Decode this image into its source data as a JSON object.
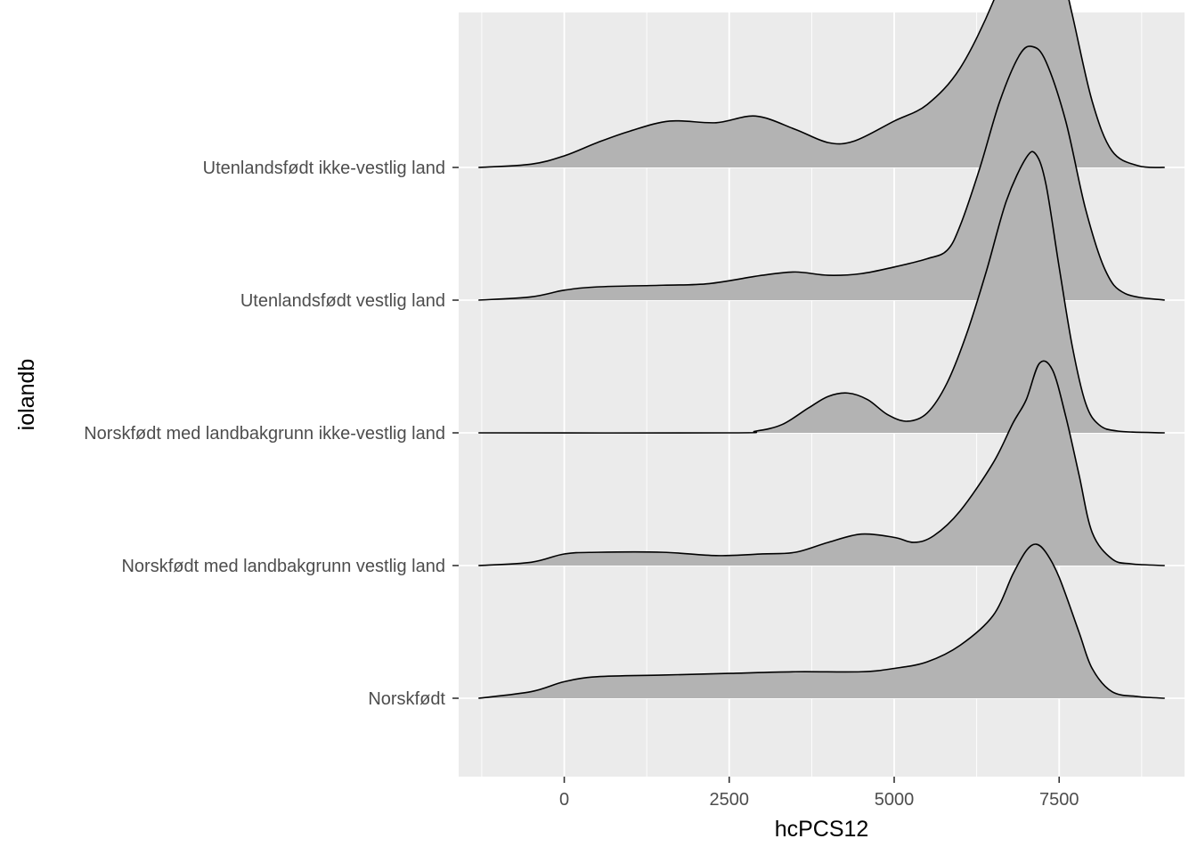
{
  "chart_data": {
    "type": "ridgeline",
    "title": "",
    "xlabel": "hcPCS12",
    "ylabel": "iolandb",
    "xlim": [
      -1600,
      9400
    ],
    "x_ticks": [
      0,
      2500,
      5000,
      7500
    ],
    "x_tick_labels": [
      "0",
      "2500",
      "5000",
      "7500"
    ],
    "grid": true,
    "fill_color": "#b3b3b3",
    "line_color": "#000000",
    "panel_color": "#ebebeb",
    "grid_color": "#ffffff",
    "categories": [
      "Norskfødt",
      "Norskfødt med landbakgrunn vestlig land",
      "Norskfødt med landbakgrunn ikke-vestlig land",
      "Utenlandsfødt vestlig land",
      "Utenlandsfødt ikke-vestlig land"
    ],
    "series": [
      {
        "category": "Norskfødt",
        "x": [
          -1300,
          -500,
          0,
          500,
          1500,
          2500,
          3500,
          4500,
          5000,
          5500,
          6000,
          6500,
          6800,
          7000,
          7150,
          7300,
          7500,
          7800,
          8000,
          8300,
          8700,
          9100
        ],
        "density": [
          0,
          0.04,
          0.1,
          0.13,
          0.14,
          0.15,
          0.16,
          0.16,
          0.18,
          0.22,
          0.32,
          0.5,
          0.75,
          0.89,
          0.93,
          0.88,
          0.73,
          0.4,
          0.18,
          0.04,
          0.01,
          0
        ]
      },
      {
        "category": "Norskfødt med landbakgrunn vestlig land",
        "x": [
          -1300,
          -500,
          0,
          500,
          1500,
          2300,
          3000,
          3500,
          4000,
          4500,
          5000,
          5300,
          5600,
          6000,
          6500,
          6800,
          7000,
          7200,
          7400,
          7600,
          7800,
          8000,
          8300,
          8600,
          9100
        ],
        "density": [
          0,
          0.02,
          0.07,
          0.08,
          0.08,
          0.06,
          0.07,
          0.08,
          0.14,
          0.19,
          0.17,
          0.14,
          0.18,
          0.33,
          0.62,
          0.86,
          1.0,
          1.22,
          1.18,
          0.9,
          0.55,
          0.2,
          0.04,
          0.01,
          0
        ]
      },
      {
        "category": "Norskfødt med landbakgrunn ikke-vestlig land",
        "x": [
          -1300,
          2500,
          2900,
          3300,
          3700,
          4000,
          4300,
          4600,
          4900,
          5200,
          5500,
          5800,
          6100,
          6400,
          6700,
          7000,
          7150,
          7300,
          7500,
          7700,
          7900,
          8100,
          8400,
          9100
        ],
        "density": [
          0,
          0,
          0.01,
          0.05,
          0.15,
          0.22,
          0.24,
          0.2,
          0.11,
          0.07,
          0.12,
          0.3,
          0.6,
          0.98,
          1.4,
          1.66,
          1.68,
          1.5,
          1.0,
          0.52,
          0.18,
          0.05,
          0.01,
          0
        ]
      },
      {
        "category": "Utenlandsfødt vestlig land",
        "x": [
          -1300,
          -500,
          0,
          500,
          1500,
          2200,
          3000,
          3500,
          4000,
          4500,
          5000,
          5500,
          5800,
          6000,
          6300,
          6600,
          6900,
          7100,
          7300,
          7600,
          7900,
          8200,
          8500,
          9100
        ],
        "density": [
          0,
          0.02,
          0.06,
          0.08,
          0.09,
          0.1,
          0.15,
          0.17,
          0.15,
          0.16,
          0.2,
          0.25,
          0.3,
          0.45,
          0.8,
          1.2,
          1.48,
          1.53,
          1.44,
          1.08,
          0.55,
          0.18,
          0.04,
          0
        ]
      },
      {
        "category": "Utenlandsfødt ikke-vestlig land",
        "x": [
          -1300,
          -500,
          0,
          500,
          1000,
          1600,
          2300,
          2900,
          3500,
          4000,
          4400,
          5000,
          5500,
          6000,
          6500,
          6800,
          7000,
          7200,
          7400,
          7700,
          8000,
          8300,
          8700,
          9100
        ],
        "density": [
          0,
          0.02,
          0.07,
          0.15,
          0.22,
          0.28,
          0.27,
          0.31,
          0.23,
          0.15,
          0.16,
          0.28,
          0.38,
          0.6,
          1.0,
          1.36,
          1.57,
          1.58,
          1.43,
          0.92,
          0.4,
          0.1,
          0.01,
          0
        ]
      }
    ]
  }
}
